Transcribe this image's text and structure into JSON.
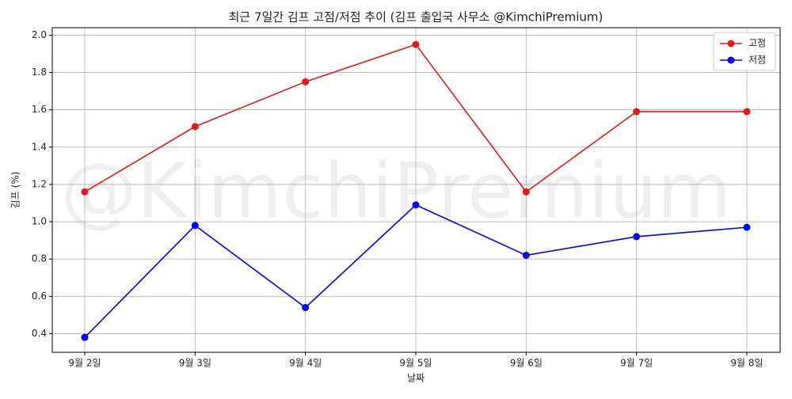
{
  "chart_data": {
    "type": "line",
    "title": "최근 7일간 김프 고점/저점 추이 (김프 출입국 사무소 @KimchiPremium)",
    "watermark": "@KimchiPremium",
    "x_label": "날짜",
    "y_label": "김프 (%)",
    "categories": [
      "9월 2일",
      "9월 3일",
      "9월 4일",
      "9월 5일",
      "9월 6일",
      "9월 7일",
      "9월 8일"
    ],
    "series": [
      {
        "name": "고점",
        "color": "#e41a1c",
        "values": [
          1.16,
          1.51,
          1.75,
          1.95,
          1.16,
          1.59,
          1.59
        ]
      },
      {
        "name": "저점",
        "color": "#0000ff",
        "values": [
          0.38,
          0.98,
          0.54,
          1.09,
          0.82,
          0.92,
          0.97
        ]
      }
    ],
    "ylim": [
      0.3,
      2.04
    ],
    "yticks": [
      0.4,
      0.6,
      0.8,
      {
        "value": 1,
        "label": "1.0"
      },
      1.2,
      1.4,
      1.6,
      1.8,
      {
        "value": 2,
        "label": "2.0"
      }
    ],
    "grid": true,
    "legend": "upper-right"
  }
}
